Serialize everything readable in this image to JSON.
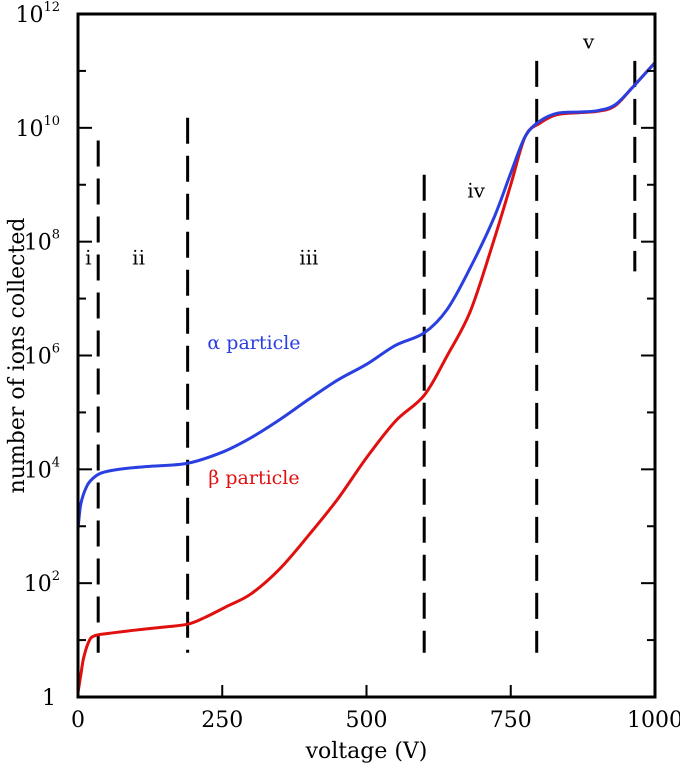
{
  "chart_data": {
    "type": "line",
    "xlabel": "voltage (V)",
    "ylabel": "number of ions collected",
    "xlim": [
      0,
      1000
    ],
    "ylim": [
      1,
      1000000000000
    ],
    "yscale": "log",
    "grid": false,
    "x_ticks": [
      {
        "value": 0,
        "label": "0"
      },
      {
        "value": 250,
        "label": "250"
      },
      {
        "value": 500,
        "label": "500"
      },
      {
        "value": 750,
        "label": "750"
      },
      {
        "value": 1000,
        "label": "1000"
      }
    ],
    "y_ticks": [
      {
        "value": 1,
        "base": "1",
        "exp": ""
      },
      {
        "value": 100,
        "base": "10",
        "exp": "2"
      },
      {
        "value": 10000,
        "base": "10",
        "exp": "4"
      },
      {
        "value": 1000000,
        "base": "10",
        "exp": "6"
      },
      {
        "value": 100000000,
        "base": "10",
        "exp": "8"
      },
      {
        "value": 10000000000,
        "base": "10",
        "exp": "10"
      },
      {
        "value": 1000000000000,
        "base": "10",
        "exp": "12"
      }
    ],
    "series": [
      {
        "name": "α particle",
        "color": "#2a3fe0",
        "label_at": {
          "x": 305,
          "y": 1300000
        },
        "points": [
          [
            0,
            900
          ],
          [
            5,
            2500
          ],
          [
            15,
            5000
          ],
          [
            25,
            6800
          ],
          [
            40,
            8600
          ],
          [
            70,
            10000
          ],
          [
            120,
            11200
          ],
          [
            190,
            12800
          ],
          [
            250,
            20000
          ],
          [
            300,
            36000
          ],
          [
            350,
            75000
          ],
          [
            400,
            170000
          ],
          [
            450,
            370000
          ],
          [
            500,
            700000
          ],
          [
            550,
            1500000
          ],
          [
            600,
            2500000
          ],
          [
            640,
            6500000
          ],
          [
            680,
            35000000
          ],
          [
            720,
            250000000
          ],
          [
            750,
            1600000000
          ],
          [
            775,
            7000000000
          ],
          [
            800,
            13000000000
          ],
          [
            830,
            18000000000
          ],
          [
            870,
            19000000000
          ],
          [
            900,
            20000000000
          ],
          [
            930,
            25000000000
          ],
          [
            960,
            50000000000
          ],
          [
            1000,
            140000000000
          ]
        ]
      },
      {
        "name": "β particle",
        "color": "#e0100f",
        "label_at": {
          "x": 305,
          "y": 5500
        },
        "points": [
          [
            0,
            1.2
          ],
          [
            5,
            2.5
          ],
          [
            10,
            5
          ],
          [
            20,
            10
          ],
          [
            30,
            12
          ],
          [
            50,
            13
          ],
          [
            100,
            15
          ],
          [
            150,
            17
          ],
          [
            190,
            19
          ],
          [
            220,
            25
          ],
          [
            260,
            40
          ],
          [
            300,
            65
          ],
          [
            350,
            180
          ],
          [
            400,
            700
          ],
          [
            450,
            3000
          ],
          [
            500,
            16000
          ],
          [
            550,
            70000
          ],
          [
            600,
            200000
          ],
          [
            640,
            1000000
          ],
          [
            680,
            6000000
          ],
          [
            720,
            100000000
          ],
          [
            750,
            1000000000
          ],
          [
            775,
            7000000000
          ],
          [
            800,
            12000000000
          ],
          [
            830,
            17000000000
          ],
          [
            870,
            18500000000
          ],
          [
            900,
            19500000000
          ],
          [
            930,
            24000000000
          ],
          [
            960,
            50000000000
          ],
          [
            1000,
            140000000000
          ]
        ]
      }
    ],
    "boundaries": [
      {
        "x": 35,
        "y_top": 6000000000,
        "y_bottom": 6
      },
      {
        "x": 190,
        "y_top": 15000000000,
        "y_bottom": 6
      },
      {
        "x": 600,
        "y_top": 1500000000,
        "y_bottom": 6
      },
      {
        "x": 795,
        "y_top": 150000000000,
        "y_bottom": 6
      },
      {
        "x": 965,
        "y_top": 150000000000,
        "y_bottom": 30000000
      }
    ],
    "regions": [
      {
        "label": "i",
        "x": 18,
        "y": 40000000
      },
      {
        "label": "ii",
        "x": 105,
        "y": 40000000
      },
      {
        "label": "iii",
        "x": 400,
        "y": 40000000
      },
      {
        "label": "iv",
        "x": 690,
        "y": 600000000
      },
      {
        "label": "v",
        "x": 885,
        "y": 250000000000
      }
    ]
  }
}
